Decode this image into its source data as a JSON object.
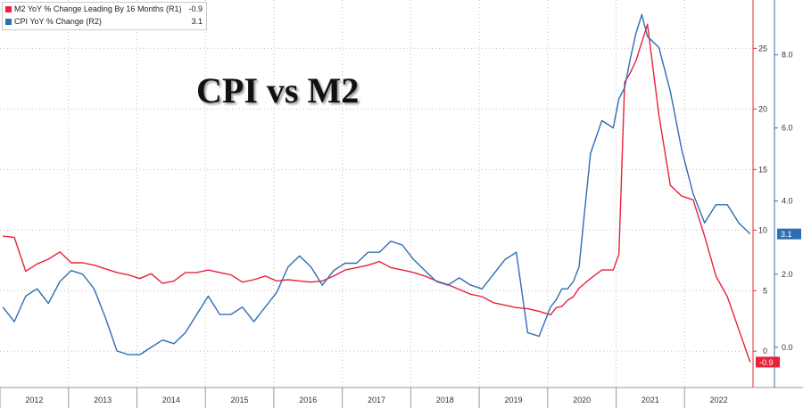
{
  "chart_data": {
    "type": "line",
    "title": "CPI vs M2",
    "x_ticks": [
      "2012",
      "2013",
      "2014",
      "2015",
      "2016",
      "2017",
      "2018",
      "2019",
      "2020",
      "2021",
      "2022"
    ],
    "xlim": [
      "2012-01",
      "2022-12"
    ],
    "grid": true,
    "legend_position": "top-left",
    "axes": {
      "R1": {
        "range": [
          -3,
          29
        ],
        "ticks": [
          "0",
          "5",
          "10",
          "15",
          "20",
          "25"
        ],
        "tick_values": [
          0,
          5,
          10,
          15,
          20,
          25
        ],
        "color": "#e8223a"
      },
      "R2": {
        "range": [
          -1.1,
          9.5
        ],
        "ticks": [
          "0.0",
          "2.0",
          "4.0",
          "6.0",
          "8.0"
        ],
        "tick_values": [
          0,
          2,
          4,
          6,
          8
        ],
        "color": "#2f6db3"
      }
    },
    "series": [
      {
        "name": "M2 YoY % Change Leading By 16 Months (R1)",
        "last_value": "-0.9",
        "axis": "R1",
        "color": "#e8223a",
        "x": [
          "2012-01",
          "2012-03",
          "2012-05",
          "2012-07",
          "2012-09",
          "2012-11",
          "2013-01",
          "2013-03",
          "2013-05",
          "2013-07",
          "2013-09",
          "2013-11",
          "2014-01",
          "2014-03",
          "2014-05",
          "2014-07",
          "2014-09",
          "2014-11",
          "2015-01",
          "2015-03",
          "2015-05",
          "2015-07",
          "2015-09",
          "2015-11",
          "2016-01",
          "2016-03",
          "2016-05",
          "2016-07",
          "2016-09",
          "2016-11",
          "2017-01",
          "2017-03",
          "2017-05",
          "2017-07",
          "2017-09",
          "2017-11",
          "2018-01",
          "2018-03",
          "2018-05",
          "2018-07",
          "2018-09",
          "2018-11",
          "2019-01",
          "2019-03",
          "2019-05",
          "2019-07",
          "2019-09",
          "2019-11",
          "2020-01",
          "2020-02",
          "2020-03",
          "2020-04",
          "2020-05",
          "2020-06",
          "2020-08",
          "2020-10",
          "2020-12",
          "2021-01",
          "2021-02",
          "2021-03",
          "2021-04",
          "2021-05",
          "2021-06",
          "2021-08",
          "2021-10",
          "2021-12",
          "2022-02",
          "2022-04",
          "2022-06",
          "2022-08",
          "2022-10",
          "2022-12"
        ],
        "values": [
          9.5,
          9.4,
          6.6,
          7.2,
          7.6,
          8.2,
          7.3,
          7.3,
          7.1,
          6.8,
          6.5,
          6.3,
          6.0,
          6.4,
          5.6,
          5.8,
          6.5,
          6.5,
          6.7,
          6.5,
          6.3,
          5.7,
          5.9,
          6.2,
          5.8,
          5.9,
          5.8,
          5.7,
          5.8,
          6.2,
          6.7,
          6.9,
          7.1,
          7.4,
          6.9,
          6.7,
          6.5,
          6.2,
          5.8,
          5.5,
          5.1,
          4.7,
          4.5,
          4.0,
          3.8,
          3.6,
          3.5,
          3.3,
          3.0,
          3.6,
          3.7,
          4.2,
          4.5,
          5.2,
          6.0,
          6.7,
          6.7,
          8.0,
          22.2,
          23.0,
          24.0,
          25.5,
          27.0,
          19.5,
          13.7,
          12.8,
          12.5,
          9.5,
          6.2,
          4.5,
          1.8,
          -0.9
        ]
      },
      {
        "name": "CPI YoY % Change (R2)",
        "last_value": "3.1",
        "axis": "R2",
        "color": "#2f6db3",
        "x": [
          "2012-01",
          "2012-03",
          "2012-05",
          "2012-07",
          "2012-09",
          "2012-11",
          "2013-01",
          "2013-03",
          "2013-05",
          "2013-07",
          "2013-09",
          "2013-11",
          "2014-01",
          "2014-03",
          "2014-05",
          "2014-07",
          "2014-09",
          "2014-11",
          "2015-01",
          "2015-03",
          "2015-05",
          "2015-07",
          "2015-09",
          "2015-11",
          "2016-01",
          "2016-03",
          "2016-05",
          "2016-07",
          "2016-09",
          "2016-11",
          "2017-01",
          "2017-03",
          "2017-05",
          "2017-07",
          "2017-09",
          "2017-11",
          "2018-01",
          "2018-03",
          "2018-05",
          "2018-07",
          "2018-09",
          "2018-11",
          "2019-01",
          "2019-03",
          "2019-05",
          "2019-07",
          "2019-09",
          "2019-11",
          "2020-01",
          "2020-02",
          "2020-03",
          "2020-04",
          "2020-05",
          "2020-06",
          "2020-08",
          "2020-10",
          "2020-12",
          "2021-01",
          "2021-02",
          "2021-03",
          "2021-04",
          "2021-05",
          "2021-06",
          "2021-08",
          "2021-10",
          "2021-12",
          "2022-02",
          "2022-04",
          "2022-06",
          "2022-08",
          "2022-10",
          "2022-12"
        ],
        "values": [
          1.1,
          0.7,
          1.4,
          1.6,
          1.2,
          1.8,
          2.1,
          2.0,
          1.6,
          0.8,
          -0.1,
          -0.2,
          -0.2,
          0.0,
          0.2,
          0.1,
          0.4,
          0.9,
          1.4,
          0.9,
          0.9,
          1.1,
          0.7,
          1.1,
          1.5,
          2.2,
          2.5,
          2.2,
          1.7,
          2.1,
          2.3,
          2.3,
          2.6,
          2.6,
          2.9,
          2.8,
          2.4,
          2.1,
          1.8,
          1.7,
          1.9,
          1.7,
          1.6,
          2.0,
          2.4,
          2.6,
          0.4,
          0.3,
          1.1,
          1.3,
          1.6,
          1.6,
          1.8,
          2.2,
          5.3,
          6.2,
          6.0,
          6.8,
          7.1,
          7.9,
          8.6,
          9.1,
          8.5,
          8.2,
          7.0,
          5.4,
          4.2,
          3.4,
          3.9,
          3.9,
          3.4,
          3.1
        ]
      }
    ]
  }
}
